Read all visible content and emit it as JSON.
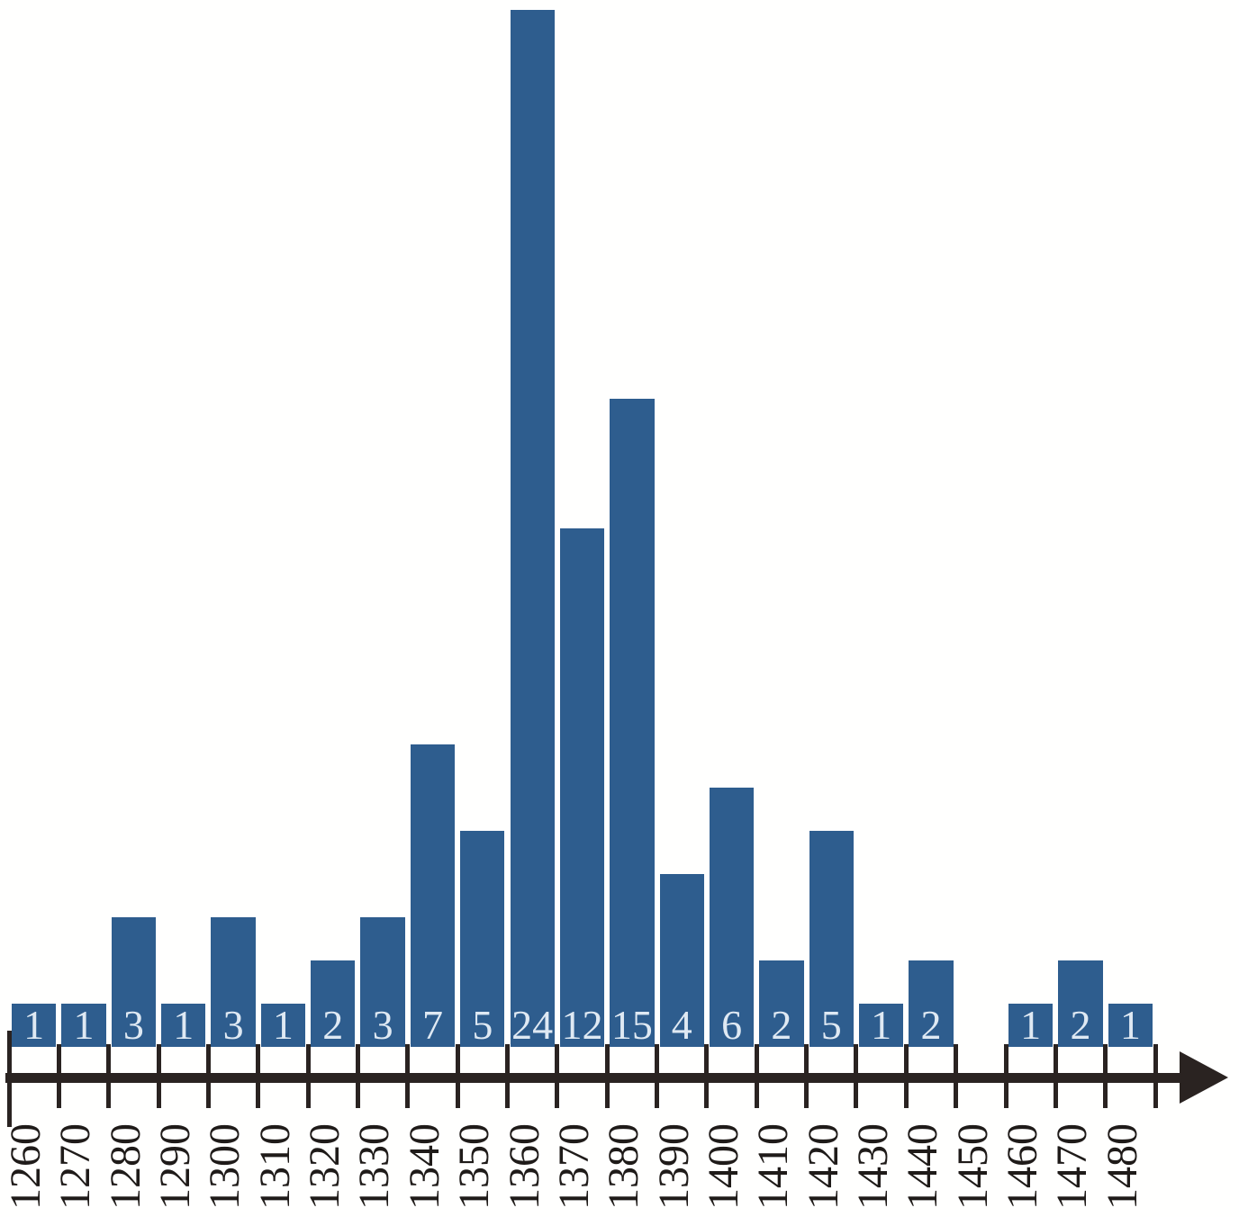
{
  "chart_data": {
    "type": "bar",
    "subtype": "histogram-timeline",
    "title": "",
    "xlabel": "",
    "ylabel": "",
    "grid": false,
    "legend": null,
    "ylim": [
      0,
      24
    ],
    "bin_width_years": 10,
    "categories": [
      1260,
      1270,
      1280,
      1290,
      1300,
      1310,
      1320,
      1330,
      1340,
      1350,
      1360,
      1370,
      1380,
      1390,
      1400,
      1410,
      1420,
      1430,
      1440,
      1450,
      1460,
      1470,
      1480
    ],
    "values": [
      1,
      1,
      3,
      1,
      3,
      1,
      2,
      3,
      7,
      5,
      24,
      12,
      15,
      4,
      6,
      2,
      5,
      1,
      2,
      0,
      1,
      2,
      1
    ],
    "axis_tick_labels": [
      "1260",
      "1270",
      "1280",
      "1290",
      "1300",
      "1310",
      "1320",
      "1330",
      "1340",
      "1350",
      "1360",
      "1370",
      "1380",
      "1390",
      "1400",
      "1410",
      "1420",
      "1430",
      "1440",
      "1450",
      "1460",
      "1470",
      "1480"
    ],
    "colors": {
      "bar": "#2e5d8e",
      "bar_value_text": "#dfe9f3",
      "axis": "#2a2321",
      "tick_label_text": "#1f1b19",
      "background": "#ffffff"
    }
  }
}
